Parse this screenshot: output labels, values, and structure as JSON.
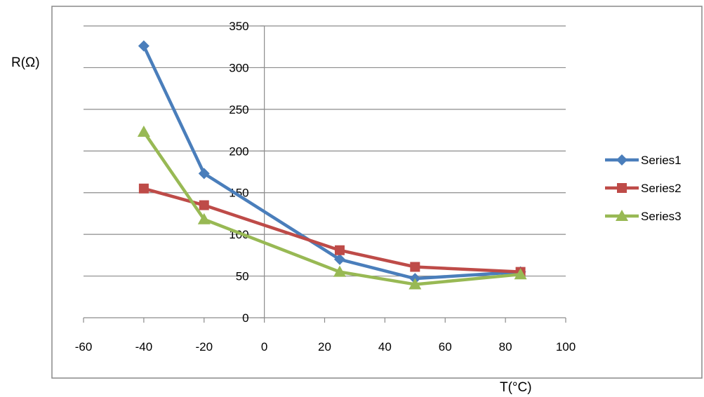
{
  "chart_data": {
    "type": "scatter",
    "xlabel": "T(°C)",
    "ylabel": "R(Ω)",
    "xlim": [
      -60,
      100
    ],
    "ylim": [
      0,
      350
    ],
    "xticks": [
      -60,
      -40,
      -20,
      0,
      20,
      40,
      60,
      80,
      100
    ],
    "yticks": [
      0,
      50,
      100,
      150,
      200,
      250,
      300,
      350
    ],
    "grid": "horizontal",
    "legend_position": "right",
    "series": [
      {
        "name": "Series1",
        "color": "#4a7ebb",
        "marker": "diamond",
        "x": [
          -40,
          -20,
          25,
          50,
          85
        ],
        "y": [
          326,
          173,
          70,
          47,
          55
        ]
      },
      {
        "name": "Series2",
        "color": "#be4b48",
        "marker": "square",
        "x": [
          -40,
          -20,
          25,
          50,
          85
        ],
        "y": [
          155,
          135,
          81,
          61,
          55
        ]
      },
      {
        "name": "Series3",
        "color": "#98b954",
        "marker": "triangle",
        "x": [
          -40,
          -20,
          25,
          50,
          85
        ],
        "y": [
          223,
          118,
          55,
          40,
          52
        ]
      }
    ]
  }
}
